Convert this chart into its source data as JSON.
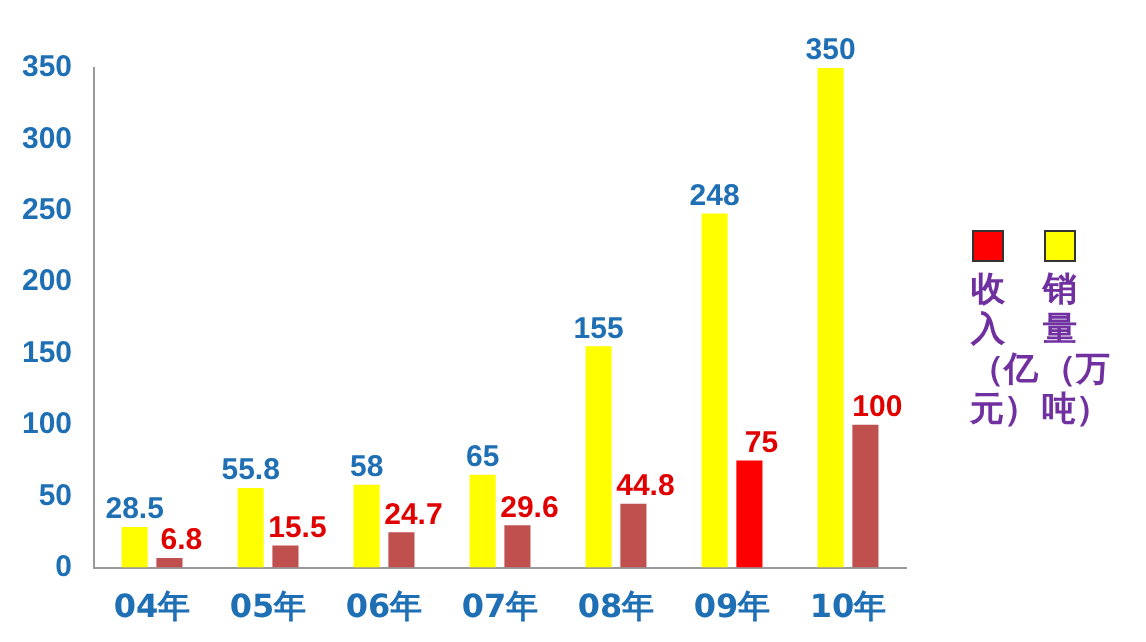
{
  "chart_data": {
    "type": "bar",
    "categories": [
      "04年",
      "05年",
      "06年",
      "07年",
      "08年",
      "09年",
      "10年"
    ],
    "series": [
      {
        "name": "销量（万吨）",
        "color": "#ffff00",
        "values": [
          28.5,
          55.8,
          58,
          65,
          155,
          248,
          350
        ]
      },
      {
        "name": "收入（亿元）",
        "color": "#c0504d",
        "colors": [
          "#c0504d",
          "#c0504d",
          "#c0504d",
          "#c0504d",
          "#c0504d",
          "#ff0000",
          "#c0504d"
        ],
        "values": [
          6.8,
          15.5,
          24.7,
          29.6,
          44.8,
          75,
          100
        ]
      }
    ],
    "ylim": [
      0,
      350
    ],
    "yticks": [
      0,
      50,
      100,
      150,
      200,
      250,
      300,
      350
    ],
    "grid": false,
    "legend": "right",
    "data_labels": true
  }
}
